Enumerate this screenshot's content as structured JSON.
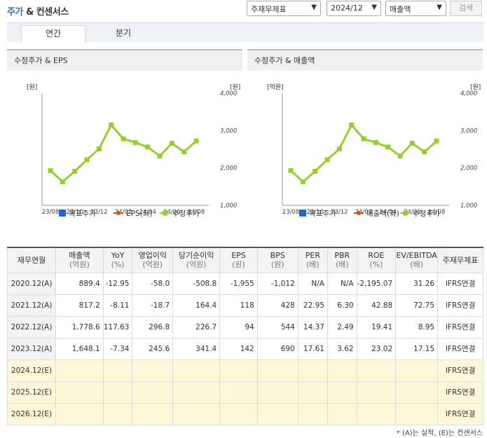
{
  "header": {
    "title_part1": "주가",
    "title_part2": " & 컨센서스",
    "select_type": "주재무제표",
    "select_period": "2024/12",
    "select_metric": "매출액",
    "search_label": "검색"
  },
  "tabs": [
    "연간",
    "분기"
  ],
  "charts": [
    {
      "title": "수정주가 & EPS",
      "left_unit": "[원]",
      "right_unit": "[원]",
      "legend": [
        "목표주가",
        "EPS(좌)",
        "수정주가"
      ]
    },
    {
      "title": "수정주가 & 매출액",
      "left_unit": "[억원]",
      "right_unit": "[원]",
      "legend": [
        "목표주가",
        "매출액(좌)",
        "수정주가"
      ]
    }
  ],
  "chart_data": [
    {
      "type": "line",
      "title": "수정주가 & EPS",
      "x_ticks": [
        "23/08",
        "23/10",
        "23/12",
        "24/02",
        "24/04",
        "24/06",
        "24/08"
      ],
      "y_right_ticks": [
        "4,000",
        "3,000",
        "2,000",
        "1,000"
      ],
      "ylim_right": [
        1000,
        4000
      ],
      "series": [
        {
          "name": "수정주가",
          "x": [
            "23/08",
            "23/09",
            "23/10",
            "23/11",
            "23/12",
            "24/01",
            "24/02",
            "24/03",
            "24/04",
            "24/05",
            "24/06",
            "24/07",
            "24/08"
          ],
          "values": [
            1930,
            1630,
            1910,
            2220,
            2510,
            3150,
            2780,
            2680,
            2560,
            2320,
            2660,
            2430,
            2720
          ]
        }
      ],
      "colors": {
        "수정주가": "#99cc33",
        "EPS(좌)": "#e04b1a",
        "목표주가": "#2266cc"
      }
    },
    {
      "type": "line",
      "title": "수정주가 & 매출액",
      "x_ticks": [
        "23/08",
        "23/10",
        "23/12",
        "24/02",
        "24/04",
        "24/06",
        "24/08"
      ],
      "y_right_ticks": [
        "4,000",
        "3,000",
        "2,000",
        "1,000"
      ],
      "ylim_right": [
        1000,
        4000
      ],
      "series": [
        {
          "name": "수정주가",
          "x": [
            "23/08",
            "23/09",
            "23/10",
            "23/11",
            "23/12",
            "24/01",
            "24/02",
            "24/03",
            "24/04",
            "24/05",
            "24/06",
            "24/07",
            "24/08"
          ],
          "values": [
            1930,
            1630,
            1910,
            2220,
            2510,
            3150,
            2780,
            2680,
            2560,
            2320,
            2660,
            2430,
            2720
          ]
        }
      ],
      "colors": {
        "수정주가": "#99cc33",
        "매출액(좌)": "#e04b1a",
        "목표주가": "#2266cc"
      }
    }
  ],
  "table": {
    "headers": [
      {
        "main": "재무연월",
        "unit": ""
      },
      {
        "main": "매출액",
        "unit": "(억원)"
      },
      {
        "main": "YoY",
        "unit": "(%)"
      },
      {
        "main": "영업이익",
        "unit": "(억원)"
      },
      {
        "main": "당기순이익",
        "unit": "(억원)"
      },
      {
        "main": "EPS",
        "unit": "(원)"
      },
      {
        "main": "BPS",
        "unit": "(원)"
      },
      {
        "main": "PER",
        "unit": "(배)"
      },
      {
        "main": "PBR",
        "unit": "(배)"
      },
      {
        "main": "ROE",
        "unit": "(%)"
      },
      {
        "main": "EV/EBITDA",
        "unit": "(배)"
      },
      {
        "main": "주재무제표",
        "unit": ""
      }
    ],
    "rows": [
      {
        "label": "2020.12(A)",
        "cells": [
          "889.4",
          "-12.95",
          "-58.0",
          "-508.8",
          "-1,955",
          "-1,012",
          "N/A",
          "N/A",
          "-2,195.07",
          "31.26"
        ],
        "std": "IFRS연결",
        "estimate": false
      },
      {
        "label": "2021.12(A)",
        "cells": [
          "817.2",
          "-8.11",
          "-18.7",
          "164.4",
          "118",
          "428",
          "22.95",
          "6.30",
          "42.88",
          "72.75"
        ],
        "std": "IFRS연결",
        "estimate": false
      },
      {
        "label": "2022.12(A)",
        "cells": [
          "1,778.6",
          "117.63",
          "296.8",
          "226.7",
          "94",
          "544",
          "14.37",
          "2.49",
          "19.41",
          "8.95"
        ],
        "std": "IFRS연결",
        "estimate": false
      },
      {
        "label": "2023.12(A)",
        "cells": [
          "1,648.1",
          "-7.34",
          "245.6",
          "341.4",
          "142",
          "690",
          "17.61",
          "3.62",
          "23.02",
          "17.15"
        ],
        "std": "IFRS연결",
        "estimate": false
      },
      {
        "label": "2024.12(E)",
        "cells": [
          "",
          "",
          "",
          "",
          "",
          "",
          "",
          "",
          "",
          ""
        ],
        "std": "IFRS연결",
        "estimate": true
      },
      {
        "label": "2025.12(E)",
        "cells": [
          "",
          "",
          "",
          "",
          "",
          "",
          "",
          "",
          "",
          ""
        ],
        "std": "IFRS연결",
        "estimate": true
      },
      {
        "label": "2026.12(E)",
        "cells": [
          "",
          "",
          "",
          "",
          "",
          "",
          "",
          "",
          "",
          ""
        ],
        "std": "IFRS연결",
        "estimate": true
      }
    ]
  },
  "footnote": "* (A)는 실적, (E)는 컨센서스"
}
